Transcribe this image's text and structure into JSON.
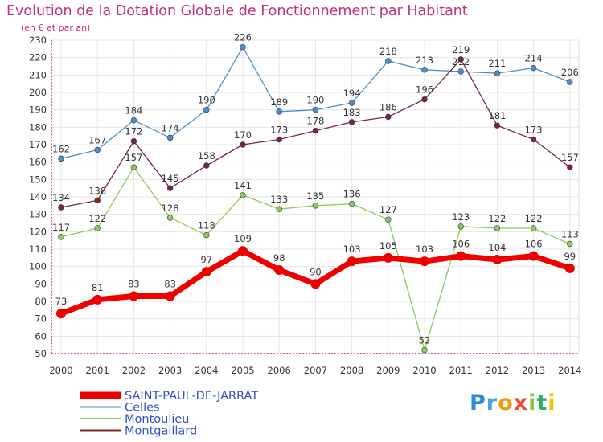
{
  "header": {
    "title": "Evolution de la Dotation Globale de Fonctionnement par Habitant",
    "subtitle": "(en € et par an)"
  },
  "logo": {
    "text": "Proxiti"
  },
  "colors": {
    "title": "#c4307a",
    "axis": "#c4307a",
    "grid": "#e5e5e5",
    "plot_background": "#ffffff"
  },
  "chart_data": {
    "type": "line",
    "title": "Evolution de la Dotation Globale de Fonctionnement par Habitant",
    "subtitle": "(en € et par an)",
    "x": [
      "2000",
      "2001",
      "2002",
      "2003",
      "2004",
      "2005",
      "2006",
      "2007",
      "2008",
      "2009",
      "2010",
      "2011",
      "2012",
      "2013",
      "2014"
    ],
    "ylim": [
      50,
      230
    ],
    "ytick_step": 10,
    "grid": true,
    "legend_position": "bottom-left",
    "series": [
      {
        "name": "SAINT-PAUL-DE-JARRAT",
        "color": "#ee0000",
        "highlight": true,
        "values": [
          73,
          81,
          83,
          83,
          97,
          109,
          98,
          90,
          103,
          105,
          103,
          106,
          104,
          106,
          99
        ]
      },
      {
        "name": "Celles",
        "color": "#4a90c8",
        "highlight": false,
        "values": [
          162,
          167,
          184,
          174,
          190,
          226,
          189,
          190,
          194,
          218,
          213,
          212,
          211,
          214,
          206
        ]
      },
      {
        "name": "Montoulieu",
        "color": "#8ccc55",
        "highlight": false,
        "values": [
          117,
          122,
          157,
          128,
          118,
          141,
          133,
          135,
          136,
          127,
          52,
          123,
          122,
          122,
          113
        ]
      },
      {
        "name": "Montgaillard",
        "color": "#7a2a2a",
        "highlight": false,
        "values": [
          134,
          138,
          172,
          145,
          158,
          170,
          173,
          178,
          183,
          186,
          196,
          219,
          181,
          173,
          157
        ]
      }
    ]
  }
}
